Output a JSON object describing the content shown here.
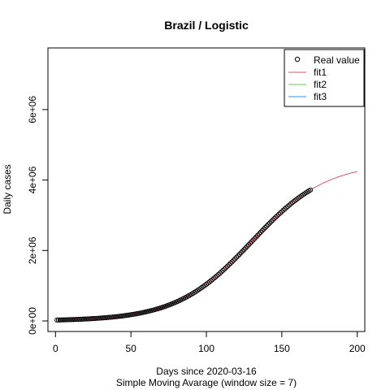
{
  "chart_data": {
    "type": "scatter",
    "title": "Brazil / Logistic",
    "xlabel": "Days since 2020-03-16",
    "subtitle": "Simple Moving Avarage (window size = 7)",
    "ylabel": "Daily cases",
    "xlim": [
      -5,
      205
    ],
    "ylim": [
      -300000.0,
      7750000.0
    ],
    "x_ticks": [
      0,
      50,
      100,
      150,
      200
    ],
    "x_tick_labels": [
      "0",
      "50",
      "100",
      "150",
      "200"
    ],
    "y_ticks": [
      0,
      2000000,
      4000000,
      6000000
    ],
    "y_tick_labels": [
      "0e+00",
      "2e+06",
      "4e+06",
      "6e+06"
    ],
    "grid": false,
    "legend_position": "top-right",
    "legend": [
      {
        "label": "Real value",
        "kind": "point",
        "color": "#000000"
      },
      {
        "label": "fit1",
        "kind": "line",
        "color": "#DF536B"
      },
      {
        "label": "fit2",
        "kind": "line",
        "color": "#61D04F"
      },
      {
        "label": "fit3",
        "kind": "line",
        "color": "#2297E6"
      }
    ],
    "real_value": {
      "name": "Real value",
      "x_start": 1,
      "x_end": 169,
      "step": 1,
      "model": "logistic",
      "K": 4500000,
      "r": 0.04,
      "t0": 130
    },
    "fit1": {
      "name": "fit1",
      "color": "#DF536B",
      "x_start": 1,
      "x_end": 200,
      "model": "logistic",
      "K": 4500000,
      "r": 0.04,
      "t0": 130
    },
    "fit2": {
      "name": "fit2",
      "color": "#61D04F"
    },
    "fit3": {
      "name": "fit3",
      "color": "#2297E6"
    }
  }
}
